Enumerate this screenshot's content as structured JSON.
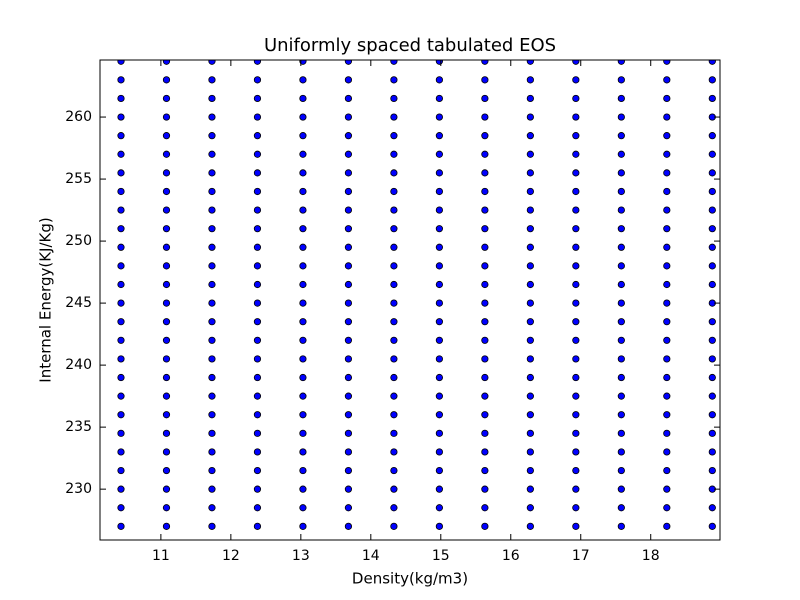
{
  "chart_data": {
    "type": "scatter",
    "title": "Uniformly spaced tabulated EOS",
    "x_label": "Density(kg/m3)",
    "y_label": "Internal Energy(KJ/Kg)",
    "xlim": [
      10.13,
      18.99
    ],
    "ylim": [
      225.9,
      264.6
    ],
    "xticks": [
      11,
      12,
      13,
      14,
      15,
      16,
      17,
      18
    ],
    "yticks": [
      230,
      235,
      240,
      245,
      250,
      255,
      260
    ],
    "color": "#0000ff",
    "edge_color": "#000000",
    "x": [
      10.43,
      10.43,
      10.43,
      10.43,
      10.43,
      10.43,
      10.43,
      10.43,
      10.43,
      10.43,
      10.43,
      10.43,
      10.43,
      10.43,
      10.43,
      10.43,
      10.43,
      10.43,
      10.43,
      10.43,
      10.43,
      10.43,
      10.43,
      10.43,
      10.43,
      10.43,
      11.08,
      11.08,
      11.08,
      11.08,
      11.08,
      11.08,
      11.08,
      11.08,
      11.08,
      11.08,
      11.08,
      11.08,
      11.08,
      11.08,
      11.08,
      11.08,
      11.08,
      11.08,
      11.08,
      11.08,
      11.08,
      11.08,
      11.08,
      11.08,
      11.08,
      11.08,
      11.73,
      11.73,
      11.73,
      11.73,
      11.73,
      11.73,
      11.73,
      11.73,
      11.73,
      11.73,
      11.73,
      11.73,
      11.73,
      11.73,
      11.73,
      11.73,
      11.73,
      11.73,
      11.73,
      11.73,
      11.73,
      11.73,
      11.73,
      11.73,
      11.73,
      11.73,
      12.38,
      12.38,
      12.38,
      12.38,
      12.38,
      12.38,
      12.38,
      12.38,
      12.38,
      12.38,
      12.38,
      12.38,
      12.38,
      12.38,
      12.38,
      12.38,
      12.38,
      12.38,
      12.38,
      12.38,
      12.38,
      12.38,
      12.38,
      12.38,
      12.38,
      12.38,
      13.03,
      13.03,
      13.03,
      13.03,
      13.03,
      13.03,
      13.03,
      13.03,
      13.03,
      13.03,
      13.03,
      13.03,
      13.03,
      13.03,
      13.03,
      13.03,
      13.03,
      13.03,
      13.03,
      13.03,
      13.03,
      13.03,
      13.03,
      13.03,
      13.03,
      13.03,
      13.68,
      13.68,
      13.68,
      13.68,
      13.68,
      13.68,
      13.68,
      13.68,
      13.68,
      13.68,
      13.68,
      13.68,
      13.68,
      13.68,
      13.68,
      13.68,
      13.68,
      13.68,
      13.68,
      13.68,
      13.68,
      13.68,
      13.68,
      13.68,
      13.68,
      13.68,
      14.33,
      14.33,
      14.33,
      14.33,
      14.33,
      14.33,
      14.33,
      14.33,
      14.33,
      14.33,
      14.33,
      14.33,
      14.33,
      14.33,
      14.33,
      14.33,
      14.33,
      14.33,
      14.33,
      14.33,
      14.33,
      14.33,
      14.33,
      14.33,
      14.33,
      14.33,
      14.98,
      14.98,
      14.98,
      14.98,
      14.98,
      14.98,
      14.98,
      14.98,
      14.98,
      14.98,
      14.98,
      14.98,
      14.98,
      14.98,
      14.98,
      14.98,
      14.98,
      14.98,
      14.98,
      14.98,
      14.98,
      14.98,
      14.98,
      14.98,
      14.98,
      14.98,
      15.63,
      15.63,
      15.63,
      15.63,
      15.63,
      15.63,
      15.63,
      15.63,
      15.63,
      15.63,
      15.63,
      15.63,
      15.63,
      15.63,
      15.63,
      15.63,
      15.63,
      15.63,
      15.63,
      15.63,
      15.63,
      15.63,
      15.63,
      15.63,
      15.63,
      15.63,
      16.28,
      16.28,
      16.28,
      16.28,
      16.28,
      16.28,
      16.28,
      16.28,
      16.28,
      16.28,
      16.28,
      16.28,
      16.28,
      16.28,
      16.28,
      16.28,
      16.28,
      16.28,
      16.28,
      16.28,
      16.28,
      16.28,
      16.28,
      16.28,
      16.28,
      16.28,
      16.93,
      16.93,
      16.93,
      16.93,
      16.93,
      16.93,
      16.93,
      16.93,
      16.93,
      16.93,
      16.93,
      16.93,
      16.93,
      16.93,
      16.93,
      16.93,
      16.93,
      16.93,
      16.93,
      16.93,
      16.93,
      16.93,
      16.93,
      16.93,
      16.93,
      16.93,
      17.58,
      17.58,
      17.58,
      17.58,
      17.58,
      17.58,
      17.58,
      17.58,
      17.58,
      17.58,
      17.58,
      17.58,
      17.58,
      17.58,
      17.58,
      17.58,
      17.58,
      17.58,
      17.58,
      17.58,
      17.58,
      17.58,
      17.58,
      17.58,
      17.58,
      17.58,
      18.23,
      18.23,
      18.23,
      18.23,
      18.23,
      18.23,
      18.23,
      18.23,
      18.23,
      18.23,
      18.23,
      18.23,
      18.23,
      18.23,
      18.23,
      18.23,
      18.23,
      18.23,
      18.23,
      18.23,
      18.23,
      18.23,
      18.23,
      18.23,
      18.23,
      18.23,
      18.88,
      18.88,
      18.88,
      18.88,
      18.88,
      18.88,
      18.88,
      18.88,
      18.88,
      18.88,
      18.88,
      18.88,
      18.88,
      18.88,
      18.88,
      18.88,
      18.88,
      18.88,
      18.88,
      18.88,
      18.88,
      18.88,
      18.88,
      18.88,
      18.88,
      18.88
    ],
    "y": [
      227,
      228.5,
      230,
      231.5,
      233,
      234.5,
      236,
      237.5,
      239,
      240.5,
      242,
      243.5,
      245,
      246.5,
      248,
      249.5,
      251,
      252.5,
      254,
      255.5,
      257,
      258.5,
      260,
      261.5,
      263,
      264.5,
      227,
      228.5,
      230,
      231.5,
      233,
      234.5,
      236,
      237.5,
      239,
      240.5,
      242,
      243.5,
      245,
      246.5,
      248,
      249.5,
      251,
      252.5,
      254,
      255.5,
      257,
      258.5,
      260,
      261.5,
      263,
      264.5,
      227,
      228.5,
      230,
      231.5,
      233,
      234.5,
      236,
      237.5,
      239,
      240.5,
      242,
      243.5,
      245,
      246.5,
      248,
      249.5,
      251,
      252.5,
      254,
      255.5,
      257,
      258.5,
      260,
      261.5,
      263,
      264.5,
      227,
      228.5,
      230,
      231.5,
      233,
      234.5,
      236,
      237.5,
      239,
      240.5,
      242,
      243.5,
      245,
      246.5,
      248,
      249.5,
      251,
      252.5,
      254,
      255.5,
      257,
      258.5,
      260,
      261.5,
      263,
      264.5,
      227,
      228.5,
      230,
      231.5,
      233,
      234.5,
      236,
      237.5,
      239,
      240.5,
      242,
      243.5,
      245,
      246.5,
      248,
      249.5,
      251,
      252.5,
      254,
      255.5,
      257,
      258.5,
      260,
      261.5,
      263,
      264.5,
      227,
      228.5,
      230,
      231.5,
      233,
      234.5,
      236,
      237.5,
      239,
      240.5,
      242,
      243.5,
      245,
      246.5,
      248,
      249.5,
      251,
      252.5,
      254,
      255.5,
      257,
      258.5,
      260,
      261.5,
      263,
      264.5,
      227,
      228.5,
      230,
      231.5,
      233,
      234.5,
      236,
      237.5,
      239,
      240.5,
      242,
      243.5,
      245,
      246.5,
      248,
      249.5,
      251,
      252.5,
      254,
      255.5,
      257,
      258.5,
      260,
      261.5,
      263,
      264.5,
      227,
      228.5,
      230,
      231.5,
      233,
      234.5,
      236,
      237.5,
      239,
      240.5,
      242,
      243.5,
      245,
      246.5,
      248,
      249.5,
      251,
      252.5,
      254,
      255.5,
      257,
      258.5,
      260,
      261.5,
      263,
      264.5,
      227,
      228.5,
      230,
      231.5,
      233,
      234.5,
      236,
      237.5,
      239,
      240.5,
      242,
      243.5,
      245,
      246.5,
      248,
      249.5,
      251,
      252.5,
      254,
      255.5,
      257,
      258.5,
      260,
      261.5,
      263,
      264.5,
      227,
      228.5,
      230,
      231.5,
      233,
      234.5,
      236,
      237.5,
      239,
      240.5,
      242,
      243.5,
      245,
      246.5,
      248,
      249.5,
      251,
      252.5,
      254,
      255.5,
      257,
      258.5,
      260,
      261.5,
      263,
      264.5,
      227,
      228.5,
      230,
      231.5,
      233,
      234.5,
      236,
      237.5,
      239,
      240.5,
      242,
      243.5,
      245,
      246.5,
      248,
      249.5,
      251,
      252.5,
      254,
      255.5,
      257,
      258.5,
      260,
      261.5,
      263,
      264.5,
      227,
      228.5,
      230,
      231.5,
      233,
      234.5,
      236,
      237.5,
      239,
      240.5,
      242,
      243.5,
      245,
      246.5,
      248,
      249.5,
      251,
      252.5,
      254,
      255.5,
      257,
      258.5,
      260,
      261.5,
      263,
      264.5,
      227,
      228.5,
      230,
      231.5,
      233,
      234.5,
      236,
      237.5,
      239,
      240.5,
      242,
      243.5,
      245,
      246.5,
      248,
      249.5,
      251,
      252.5,
      254,
      255.5,
      257,
      258.5,
      260,
      261.5,
      263,
      264.5,
      227,
      228.5,
      230,
      231.5,
      233,
      234.5,
      236,
      237.5,
      239,
      240.5,
      242,
      243.5,
      245,
      246.5,
      248,
      249.5,
      251,
      252.5,
      254,
      255.5,
      257,
      258.5,
      260,
      261.5,
      263,
      264.5
    ]
  }
}
